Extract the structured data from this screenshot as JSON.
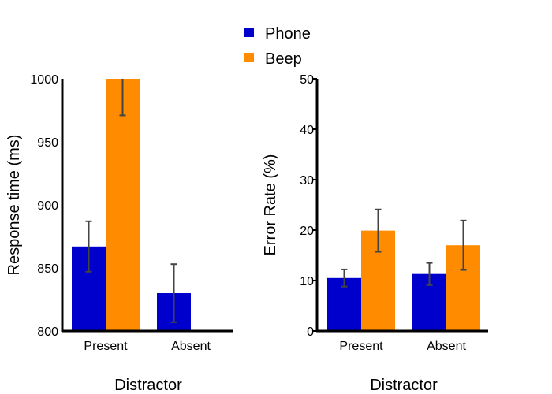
{
  "chart_data": [
    {
      "type": "bar",
      "categories": [
        "Present",
        "Absent"
      ],
      "series": [
        {
          "name": "Phone",
          "color": "#0000cc",
          "values": [
            867,
            830
          ],
          "errors": [
            20,
            23
          ]
        },
        {
          "name": "Beep",
          "color": "#ff8c00",
          "values": [
            1000,
            null
          ],
          "errors": [
            29,
            null
          ]
        }
      ],
      "xlabel": "Distractor",
      "ylabel": "Response time (ms)",
      "ylim": [
        800,
        1000
      ],
      "yticks": [
        800,
        850,
        900,
        950,
        1000
      ],
      "legend": "top-center"
    },
    {
      "type": "bar",
      "categories": [
        "Present",
        "Absent"
      ],
      "series": [
        {
          "name": "Phone",
          "color": "#0000cc",
          "values": [
            10.5,
            11.3
          ],
          "errors": [
            1.7,
            2.2
          ]
        },
        {
          "name": "Beep",
          "color": "#ff8c00",
          "values": [
            19.9,
            17.0
          ],
          "errors": [
            4.2,
            4.9
          ]
        }
      ],
      "xlabel": "Distractor",
      "ylabel": "Error Rate (%)",
      "ylim": [
        0,
        50
      ],
      "yticks": [
        0,
        10,
        20,
        30,
        40,
        50
      ]
    }
  ],
  "legend": {
    "items": [
      {
        "label": "Phone",
        "color": "#0000cc"
      },
      {
        "label": "Beep",
        "color": "#ff8c00"
      }
    ]
  }
}
